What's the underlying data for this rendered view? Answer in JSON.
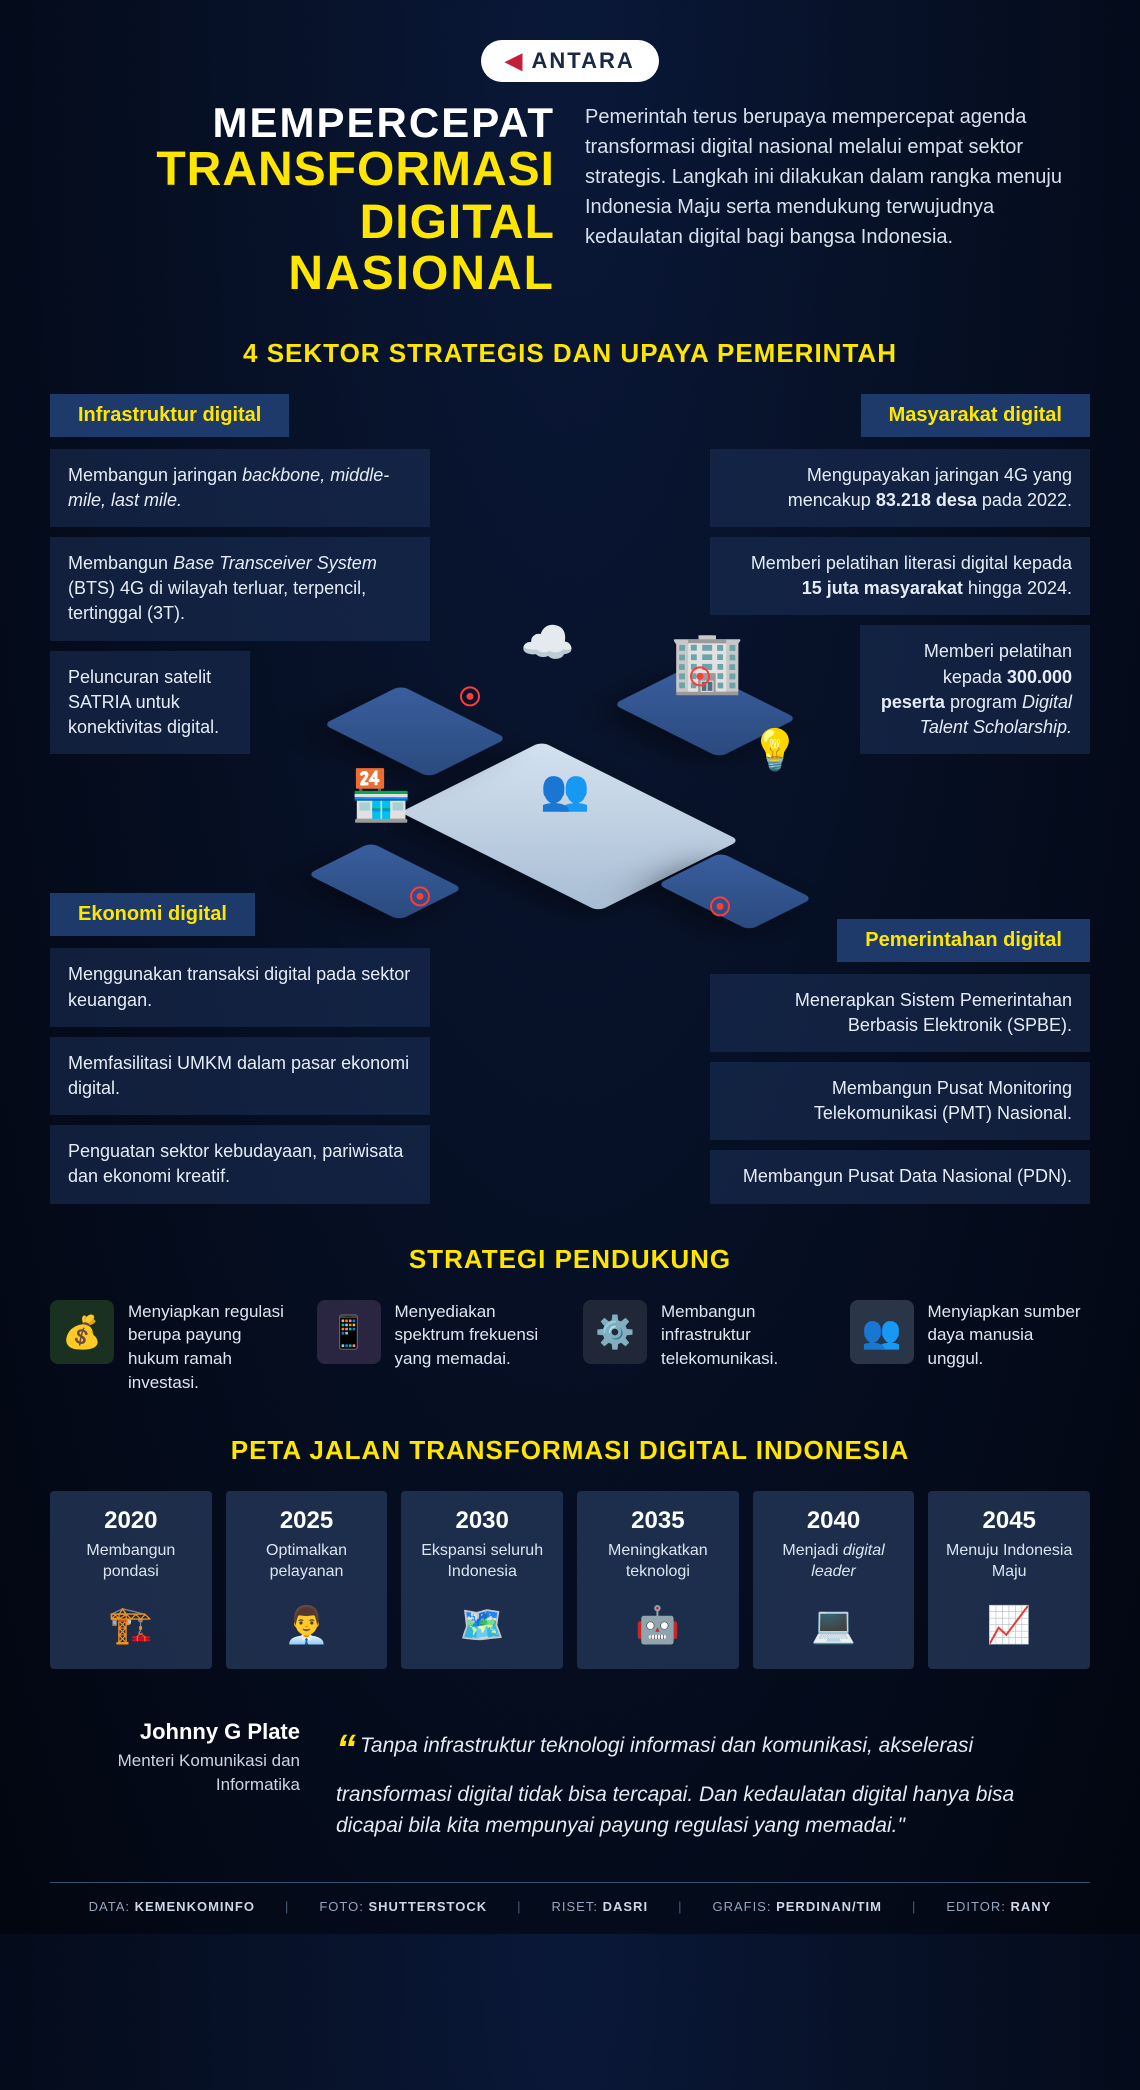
{
  "brand": "ANTARA",
  "colors": {
    "bg_top": "#0a1838",
    "bg_bottom": "#020610",
    "yellow": "#ffe600",
    "white": "#ffffff",
    "box": "#1e3a6b",
    "box_alpha": "rgba(30,50,90,0.55)",
    "text_light": "#d8e0ec",
    "marker": "#ff3b3b"
  },
  "title": {
    "line1": "MEMPERCEPAT",
    "line2": "TRANSFORMASI DIGITAL",
    "line3": "NASIONAL"
  },
  "intro": "Pemerintah terus berupaya mempercepat agenda transformasi digital nasional melalui empat sektor strategis. Langkah ini dilakukan dalam rangka menuju Indonesia Maju serta mendukung terwujudnya kedaulatan digital bagi bangsa Indonesia.",
  "section1_title": "4 SEKTOR STRATEGIS DAN UPAYA PEMERINTAH",
  "sectors": {
    "top_left": {
      "label": "Infrastruktur digital",
      "items": [
        "Membangun jaringan <em>backbone, middle-mile, last mile.</em>",
        "Membangun <em>Base Transceiver System</em> (BTS) 4G di wilayah terluar, terpencil, tertinggal (3T).",
        "Peluncuran satelit SATRIA untuk konektivitas digital."
      ]
    },
    "top_right": {
      "label": "Masyarakat digital",
      "items": [
        "Mengupayakan jaringan 4G yang mencakup <strong>83.218 desa</strong> pada 2022.",
        "Memberi pelatihan literasi digital kepada <strong>15 juta masyarakat</strong> hingga 2024.",
        "Memberi pelatihan kepada <strong>300.000 peserta</strong> program <em>Digital Talent Scholarship.</em>"
      ]
    },
    "bottom_left": {
      "label": "Ekonomi digital",
      "items": [
        "Menggunakan transaksi digital pada sektor keuangan.",
        "Memfasilitasi UMKM dalam pasar ekonomi digital.",
        "Penguatan sektor kebudayaan, pariwisata dan ekonomi kreatif."
      ]
    },
    "bottom_right": {
      "label": "Pemerintahan digital",
      "items": [
        "Menerapkan Sistem Pemerintahan Berbasis Elektronik (SPBE).",
        "Membangun Pusat Monitoring Telekomunikasi (PMT) Nasional.",
        "Membangun Pusat Data Nasional (PDN)."
      ]
    }
  },
  "section2_title": "STRATEGI PENDUKUNG",
  "strategies": [
    {
      "icon": "💰",
      "icon_bg": "#1a3020",
      "text": "Menyiapkan regulasi berupa payung hukum ramah investasi."
    },
    {
      "icon": "📱",
      "icon_bg": "#2a2540",
      "text": "Menyediakan spektrum frekuensi yang memadai."
    },
    {
      "icon": "⚙️",
      "icon_bg": "#202838",
      "text": "Membangun infrastruktur telekomunikasi."
    },
    {
      "icon": "👥",
      "icon_bg": "#2a3548",
      "text": "Menyiapkan sumber daya manusia unggul."
    }
  ],
  "section3_title": "PETA JALAN TRANSFORMASI DIGITAL INDONESIA",
  "roadmap": [
    {
      "year": "2020",
      "label": "Membangun pondasi",
      "icon": "🏗️"
    },
    {
      "year": "2025",
      "label": "Optimalkan pelayanan",
      "icon": "👨‍💼"
    },
    {
      "year": "2030",
      "label": "Ekspansi seluruh Indonesia",
      "icon": "🗺️"
    },
    {
      "year": "2035",
      "label": "Meningkatkan teknologi",
      "icon": "🤖"
    },
    {
      "year": "2040",
      "label": "Menjadi <em>digital leader</em>",
      "icon": "💻"
    },
    {
      "year": "2045",
      "label": "Menuju Indonesia Maju",
      "icon": "📈"
    }
  ],
  "quote": {
    "author_name": "Johnny G Plate",
    "author_title": "Menteri Komunikasi dan Informatika",
    "mark": "“",
    "text": "Tanpa infrastruktur teknologi informasi dan komunikasi, akselerasi transformasi digital tidak bisa tercapai. Dan kedaulatan digital hanya bisa dicapai bila kita mempunyai payung regulasi yang memadai.\""
  },
  "footer": {
    "data_label": "DATA:",
    "data_val": "KEMENKOMINFO",
    "foto_label": "FOTO:",
    "foto_val": "SHUTTERSTOCK",
    "riset_label": "RISET:",
    "riset_val": "DASRI",
    "grafis_label": "GRAFIS:",
    "grafis_val": "PERDINAN/TIM",
    "editor_label": "EDITOR:",
    "editor_val": "RANY"
  }
}
